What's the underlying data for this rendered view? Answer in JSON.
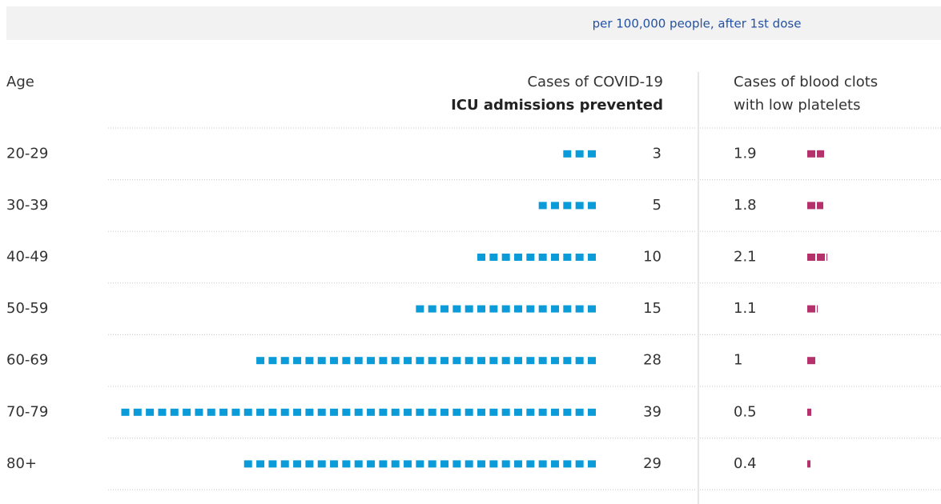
{
  "chart_data": {
    "type": "pictogram",
    "subtitle": "per 100,000 people, after 1st dose",
    "category_header": "Age",
    "left_header": [
      "Cases of COVID-19",
      "ICU admissions prevented"
    ],
    "right_header": [
      "Cases of blood clots",
      "with low platelets"
    ],
    "categories": [
      "20-29",
      "30-39",
      "40-49",
      "50-59",
      "60-69",
      "70-79",
      "80+"
    ],
    "series": [
      {
        "name": "ICU admissions prevented",
        "color": "#0b9bd8",
        "values": [
          3,
          5,
          10,
          15,
          28,
          39,
          29
        ]
      },
      {
        "name": "Cases of blood clots with low platelets",
        "color": "#b5316b",
        "values": [
          1.9,
          1.8,
          2.1,
          1.1,
          1,
          0.5,
          0.4
        ]
      }
    ]
  }
}
